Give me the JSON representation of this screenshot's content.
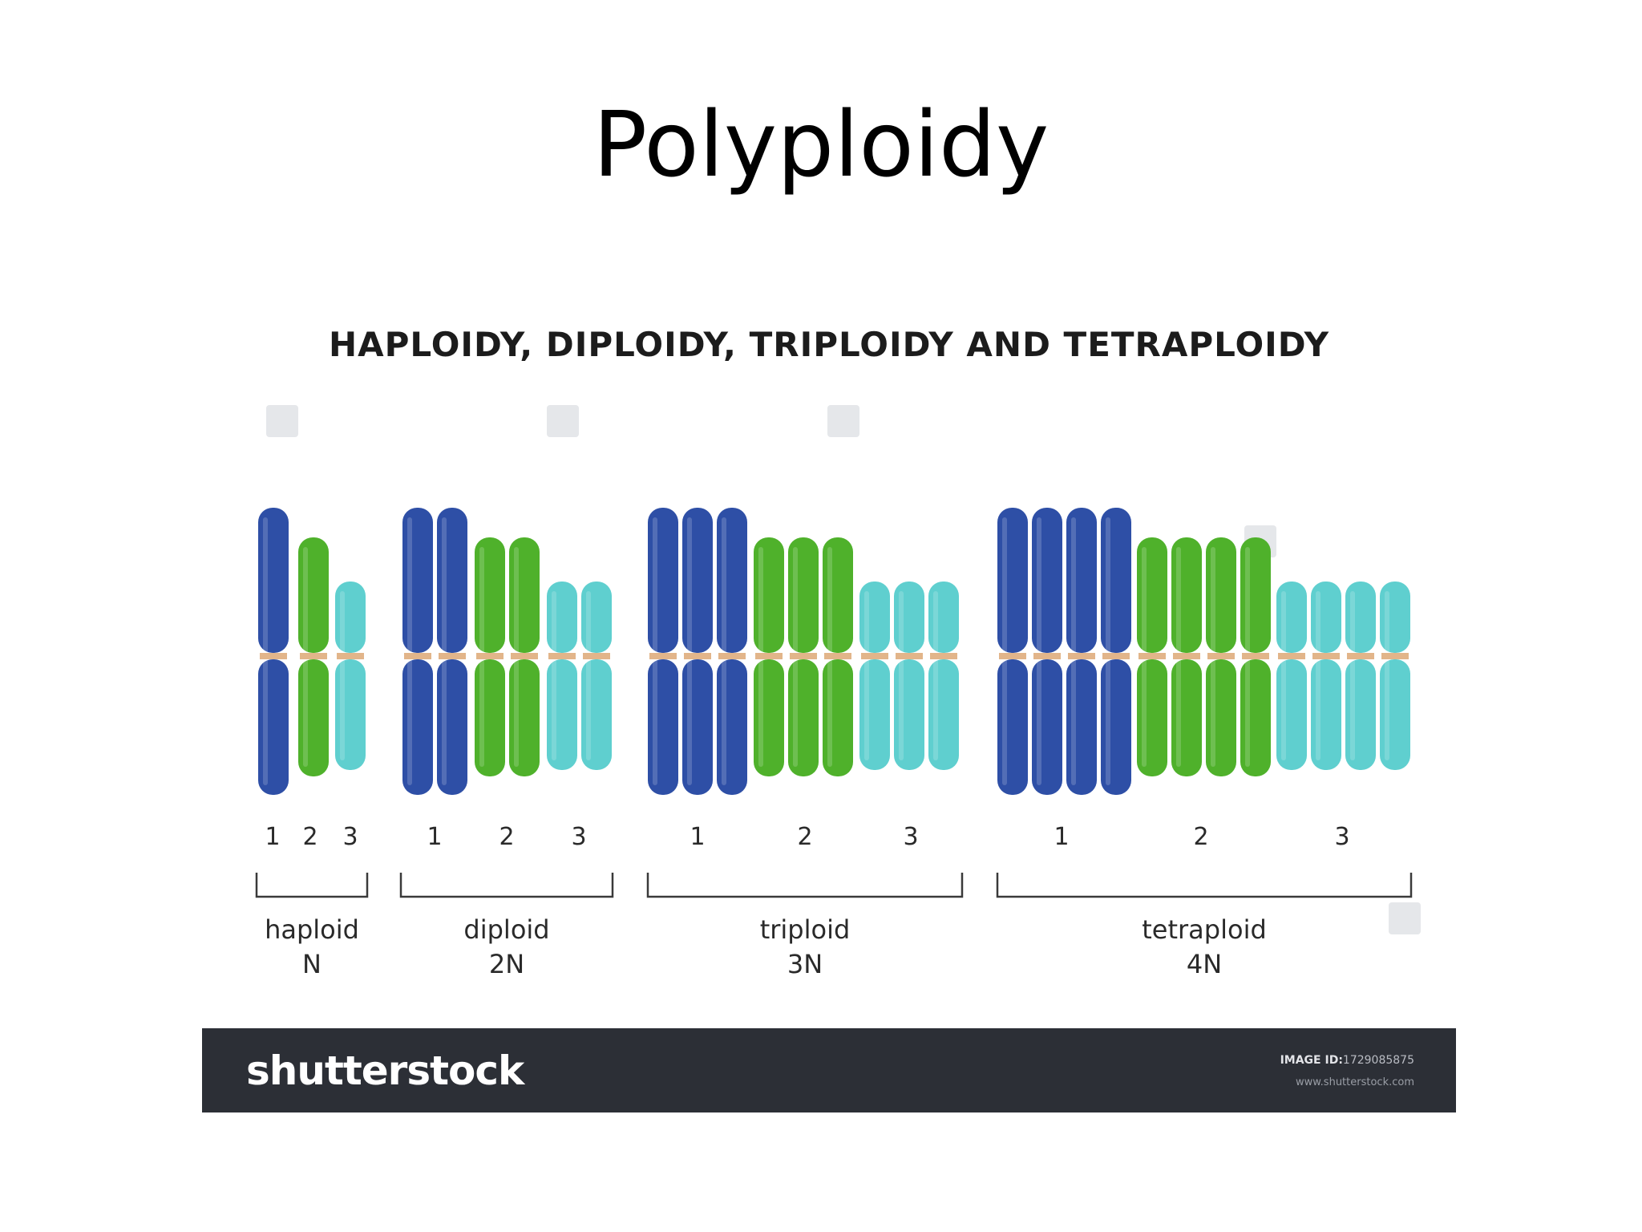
{
  "slide": {
    "title": "Polyploidy"
  },
  "figure": {
    "heading": "HAPLOIDY, DIPLOIDY, TRIPLOIDY AND TETRAPLOIDY",
    "colors": {
      "chromosome_1": "#2e4fa6",
      "chromosome_2": "#4fb12b",
      "chromosome_3": "#5fcfcf",
      "centromere": "#e2b58a"
    },
    "groups": [
      {
        "name": "haploid",
        "ploidy": "N",
        "copies": 1,
        "numbers": [
          "1",
          "2",
          "3"
        ]
      },
      {
        "name": "diploid",
        "ploidy": "2N",
        "copies": 2,
        "numbers": [
          "1",
          "2",
          "3"
        ]
      },
      {
        "name": "triploid",
        "ploidy": "3N",
        "copies": 3,
        "numbers": [
          "1",
          "2",
          "3"
        ]
      },
      {
        "name": "tetraploid",
        "ploidy": "4N",
        "copies": 4,
        "numbers": [
          "1",
          "2",
          "3"
        ]
      }
    ]
  },
  "footer": {
    "logo": "shutterstock",
    "image_id_label": "IMAGE ID:",
    "image_id": "1729085875",
    "url": "www.shutterstock.com"
  }
}
